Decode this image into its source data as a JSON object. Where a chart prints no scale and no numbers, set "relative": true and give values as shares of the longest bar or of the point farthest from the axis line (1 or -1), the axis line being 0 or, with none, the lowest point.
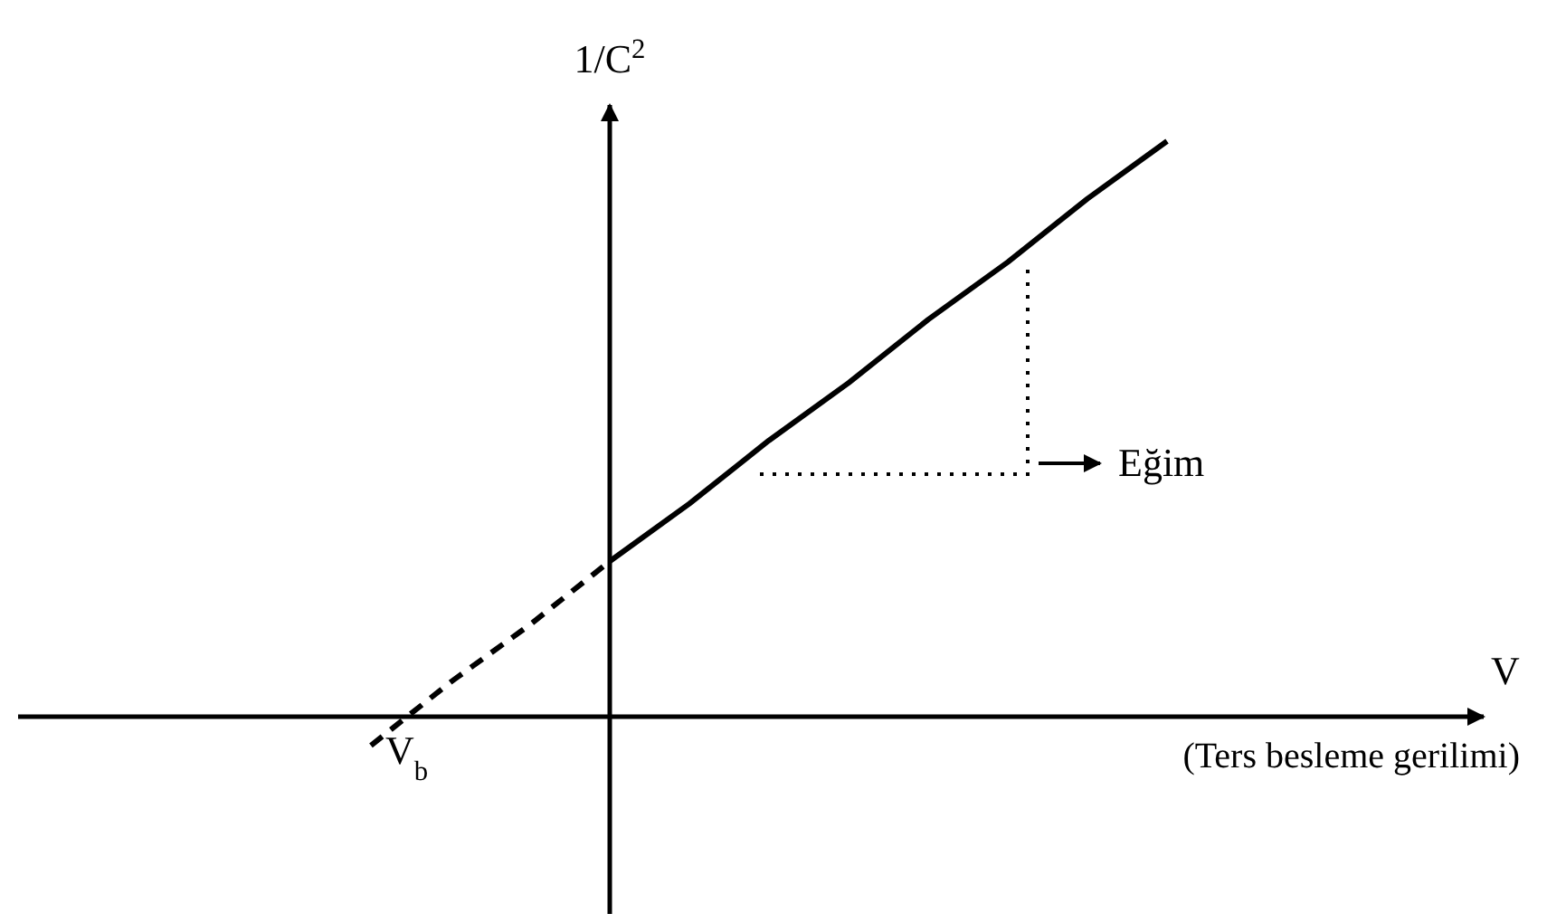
{
  "chart_data": {
    "type": "line",
    "relative": true,
    "ylabel": "1/C$^{2}$",
    "categories": [
      null,
      null,
      null,
      null,
      null,
      null,
      null,
      null,
      null,
      null,
      null
    ],
    "series": [
      {
        "color": "#000000",
        "values": [
          null,
          null,
          null,
          0.27,
          0.37,
          0.48,
          0.58,
          0.69,
          0.79,
          0.9,
          1.0
        ],
        "line_style": "solid"
      },
      {
        "color": "#000000",
        "values": [
          -0.05,
          0.06,
          0.16,
          0.27,
          null,
          null,
          null,
          null,
          null,
          null,
          null
        ],
        "line_style": "dashed"
      }
    ],
    "annotations": [
      "V$_{b}$",
      "(Ters besleme gerilimi)",
      "Eğim",
      "V"
    ]
  }
}
